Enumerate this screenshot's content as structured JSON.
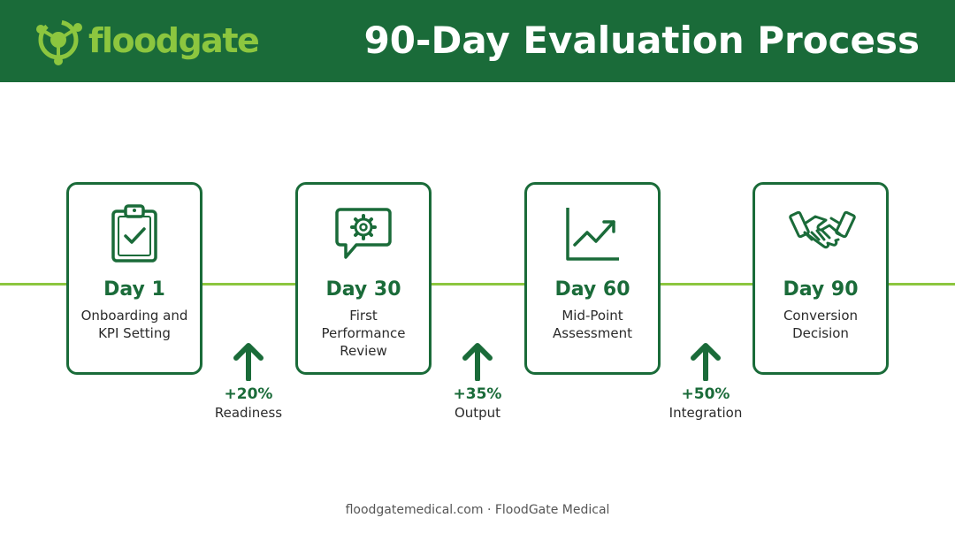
{
  "header": {
    "brand": "floodgate",
    "title": "90-Day Evaluation Process"
  },
  "colors": {
    "primary": "#1a6b39",
    "accent": "#8cc63f",
    "text": "#2b2b2b"
  },
  "stages": [
    {
      "day": "Day 1",
      "desc_lines": [
        "Onboarding and",
        "KPI Setting"
      ],
      "icon": "clipboard-check-icon"
    },
    {
      "day": "Day 30",
      "desc_lines": [
        "First",
        "Performance",
        "Review"
      ],
      "icon": "gear-chat-bubble-icon"
    },
    {
      "day": "Day 60",
      "desc_lines": [
        "Mid-Point",
        "Assessment"
      ],
      "icon": "line-chart-icon"
    },
    {
      "day": "Day 90",
      "desc_lines": [
        "Conversion",
        "Decision"
      ],
      "icon": "handshake-icon"
    }
  ],
  "metrics": [
    {
      "value": "+20%",
      "label": "Readiness",
      "icon": "arrow-up-icon"
    },
    {
      "value": "+35%",
      "label": "Output",
      "icon": "arrow-up-icon"
    },
    {
      "value": "+50%",
      "label": "Integration",
      "icon": "arrow-up-icon"
    }
  ],
  "footer": {
    "text": "floodgatemedical.com · FloodGate Medical"
  }
}
